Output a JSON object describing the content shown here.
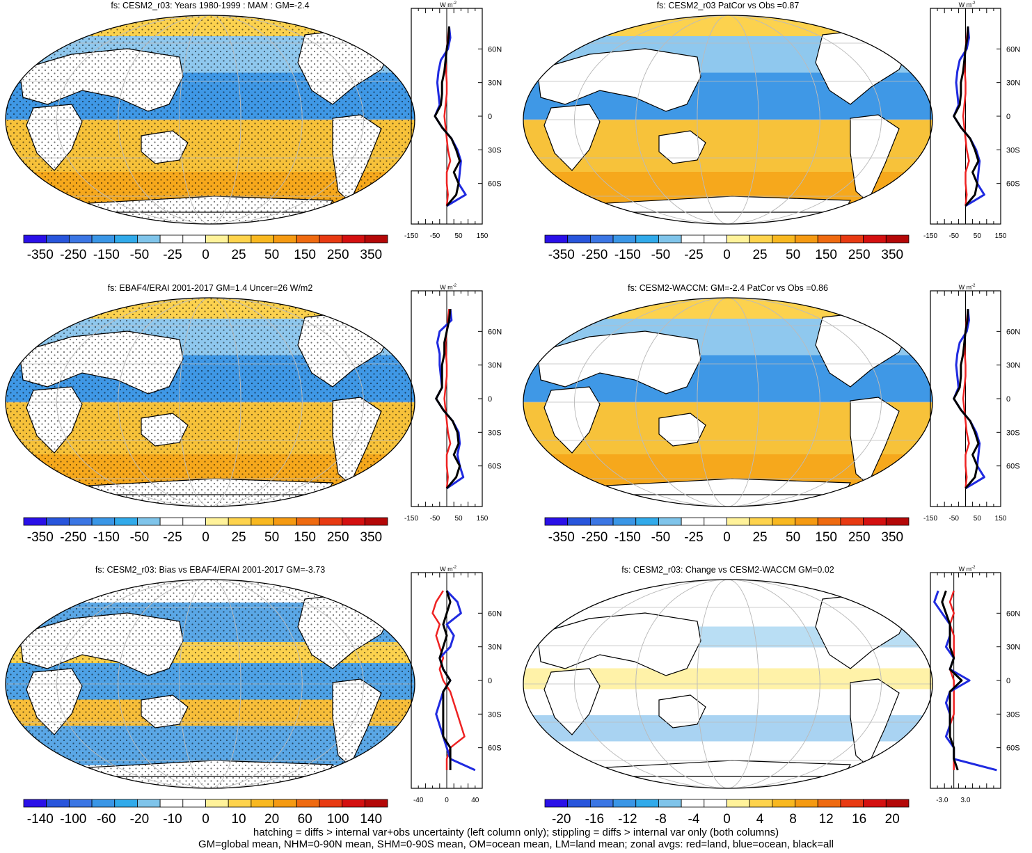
{
  "figure": {
    "footer_line1": "hatching = diffs > internal var+obs uncertainty (left column only); stippling = diffs > internal var only (both columns)",
    "footer_line2": "GM=global mean, NHM=0-90N mean, SHM=0-90S mean, OM=ocean mean, LM=land mean; zonal avgs: red=land, blue=ocean, black=all",
    "zonal_unit_w": "W",
    "zonal_unit_m": "m",
    "zonal_unit_exp": "-2",
    "lat_labels": [
      "60N",
      "30N",
      "0",
      "30S",
      "60S"
    ],
    "colors": {
      "land": "#ee2222",
      "ocean": "#1f2ae0",
      "all": "#000000"
    }
  },
  "chart_data": [
    {
      "type": "heatmap",
      "title": "fs: CESM2_r03: Years 1980-1999 : MAM : GM=-2.4",
      "colorbar_labels": [
        "-350",
        "-250",
        "-150",
        "-50",
        "-25",
        "0",
        "25",
        "50",
        "150",
        "250",
        "350"
      ],
      "zonal_xticks": [
        "-150",
        "-50",
        "50",
        "150"
      ],
      "zonal_xrange": [
        -150,
        150
      ],
      "profiles": {
        "lat": [
          80,
          70,
          60,
          50,
          40,
          30,
          20,
          10,
          0,
          -10,
          -20,
          -30,
          -40,
          -50,
          -60,
          -70,
          -80
        ],
        "land": [
          10,
          5,
          0,
          -5,
          -3,
          0,
          0,
          -5,
          -10,
          -5,
          0,
          5,
          15,
          0,
          0,
          5,
          0
        ],
        "ocean": [
          10,
          15,
          5,
          -25,
          -35,
          -40,
          -35,
          -30,
          -50,
          -20,
          20,
          45,
          60,
          55,
          50,
          80,
          0
        ],
        "all": [
          10,
          8,
          0,
          -5,
          -10,
          -20,
          -20,
          -25,
          -50,
          -20,
          20,
          40,
          55,
          30,
          50,
          40,
          0
        ]
      }
    },
    {
      "type": "heatmap",
      "title": "fs: CESM2_r03 PatCor vs Obs =0.87",
      "colorbar_labels": [
        "-350",
        "-250",
        "-150",
        "-50",
        "-25",
        "0",
        "25",
        "50",
        "150",
        "250",
        "350"
      ],
      "zonal_xticks": [
        "-150",
        "-50",
        "50",
        "150"
      ],
      "zonal_xrange": [
        -150,
        150
      ],
      "profiles": {
        "lat": [
          80,
          70,
          60,
          50,
          40,
          30,
          20,
          10,
          0,
          -10,
          -20,
          -30,
          -40,
          -50,
          -60,
          -70,
          -80
        ],
        "land": [
          10,
          5,
          0,
          -5,
          -3,
          0,
          0,
          -5,
          -10,
          -5,
          0,
          5,
          15,
          0,
          0,
          5,
          0
        ],
        "ocean": [
          10,
          15,
          5,
          -25,
          -35,
          -40,
          -35,
          -30,
          -50,
          -20,
          20,
          45,
          60,
          55,
          50,
          80,
          0
        ],
        "all": [
          10,
          8,
          0,
          -5,
          -10,
          -20,
          -20,
          -25,
          -50,
          -20,
          20,
          40,
          55,
          30,
          50,
          40,
          0
        ]
      }
    },
    {
      "type": "heatmap",
      "title": "fs: EBAF4/ERAI 2001-2017 GM=1.4 Uncer=26 W/m2",
      "colorbar_labels": [
        "-350",
        "-250",
        "-150",
        "-50",
        "-25",
        "0",
        "25",
        "50",
        "150",
        "250",
        "350"
      ],
      "zonal_xticks": [
        "-150",
        "-50",
        "50",
        "150"
      ],
      "zonal_xrange": [
        -150,
        150
      ],
      "profiles": {
        "lat": [
          80,
          70,
          60,
          50,
          40,
          30,
          20,
          10,
          0,
          -10,
          -20,
          -30,
          -40,
          -50,
          -60,
          -70,
          -80
        ],
        "land": [
          10,
          5,
          0,
          -5,
          -3,
          0,
          0,
          -5,
          -10,
          -5,
          0,
          5,
          15,
          0,
          0,
          5,
          0
        ],
        "ocean": [
          15,
          20,
          -30,
          -40,
          -30,
          -30,
          -25,
          -20,
          -45,
          -15,
          25,
          50,
          55,
          45,
          55,
          70,
          0
        ],
        "all": [
          15,
          10,
          0,
          -10,
          -10,
          -20,
          -20,
          -20,
          -45,
          -15,
          25,
          45,
          50,
          30,
          55,
          40,
          0
        ]
      }
    },
    {
      "type": "heatmap",
      "title": "fs: CESM2-WACCM: GM=-2.4 PatCor vs Obs =0.86",
      "colorbar_labels": [
        "-350",
        "-250",
        "-150",
        "-50",
        "-25",
        "0",
        "25",
        "50",
        "150",
        "250",
        "350"
      ],
      "zonal_xticks": [
        "-150",
        "-50",
        "50",
        "150"
      ],
      "zonal_xrange": [
        -150,
        150
      ],
      "profiles": {
        "lat": [
          80,
          70,
          60,
          50,
          40,
          30,
          20,
          10,
          0,
          -10,
          -20,
          -30,
          -40,
          -50,
          -60,
          -70,
          -80
        ],
        "land": [
          10,
          5,
          0,
          -5,
          -3,
          0,
          0,
          -5,
          -10,
          -5,
          0,
          5,
          15,
          0,
          0,
          5,
          0
        ],
        "ocean": [
          10,
          15,
          5,
          -25,
          -35,
          -40,
          -35,
          -30,
          -50,
          -20,
          20,
          45,
          60,
          55,
          50,
          80,
          0
        ],
        "all": [
          10,
          8,
          0,
          -5,
          -10,
          -20,
          -20,
          -25,
          -50,
          -20,
          20,
          40,
          55,
          30,
          50,
          40,
          0
        ]
      }
    },
    {
      "type": "heatmap",
      "title": "fs: CESM2_r03: Bias vs EBAF4/ERAI 2001-2017 GM=-3.73",
      "colorbar_labels": [
        "-140",
        "-100",
        "-60",
        "-20",
        "-10",
        "0",
        "10",
        "20",
        "60",
        "100",
        "140"
      ],
      "zonal_xticks": [
        "-40",
        "0",
        "40"
      ],
      "zonal_xrange": [
        -50,
        50
      ],
      "profiles": {
        "lat": [
          80,
          70,
          60,
          50,
          40,
          30,
          20,
          10,
          0,
          -10,
          -20,
          -30,
          -40,
          -50,
          -60,
          -70,
          -80
        ],
        "land": [
          -5,
          -15,
          -20,
          -10,
          -15,
          -10,
          -5,
          -10,
          -5,
          5,
          10,
          15,
          20,
          25,
          5,
          0,
          0
        ],
        "ocean": [
          0,
          15,
          20,
          0,
          10,
          5,
          -10,
          -5,
          5,
          -5,
          -10,
          -15,
          -10,
          -5,
          0,
          5,
          40
        ],
        "all": [
          0,
          5,
          0,
          -5,
          0,
          -5,
          -10,
          -5,
          5,
          -5,
          -5,
          -5,
          -5,
          -5,
          5,
          5,
          5
        ]
      }
    },
    {
      "type": "heatmap",
      "title": "fs: CESM2_r03: Change vs CESM2-WACCM GM=0.02",
      "colorbar_labels": [
        "-20",
        "-16",
        "-12",
        "-8",
        "-4",
        "0",
        "4",
        "8",
        "12",
        "16",
        "20"
      ],
      "zonal_xticks": [
        "-3.0",
        "3.0"
      ],
      "zonal_xrange": [
        -6,
        12
      ],
      "profiles": {
        "lat": [
          80,
          70,
          60,
          50,
          40,
          30,
          20,
          10,
          0,
          -10,
          -20,
          -30,
          -40,
          -50,
          -60,
          -70,
          -80
        ],
        "land": [
          0,
          -1,
          0,
          -1,
          0,
          0,
          0,
          -1,
          0,
          0,
          0,
          0,
          -1,
          -2,
          0,
          0,
          0
        ],
        "ocean": [
          -4,
          -5,
          -3,
          -1,
          -1,
          -2,
          0,
          -1,
          4,
          -1,
          -2,
          -1,
          -1,
          -2,
          0,
          0,
          11
        ],
        "all": [
          -2,
          -3,
          -2,
          -1,
          -1,
          -1,
          0,
          -1,
          2,
          -1,
          -1,
          -1,
          -1,
          -1,
          0,
          0,
          1
        ]
      }
    }
  ]
}
